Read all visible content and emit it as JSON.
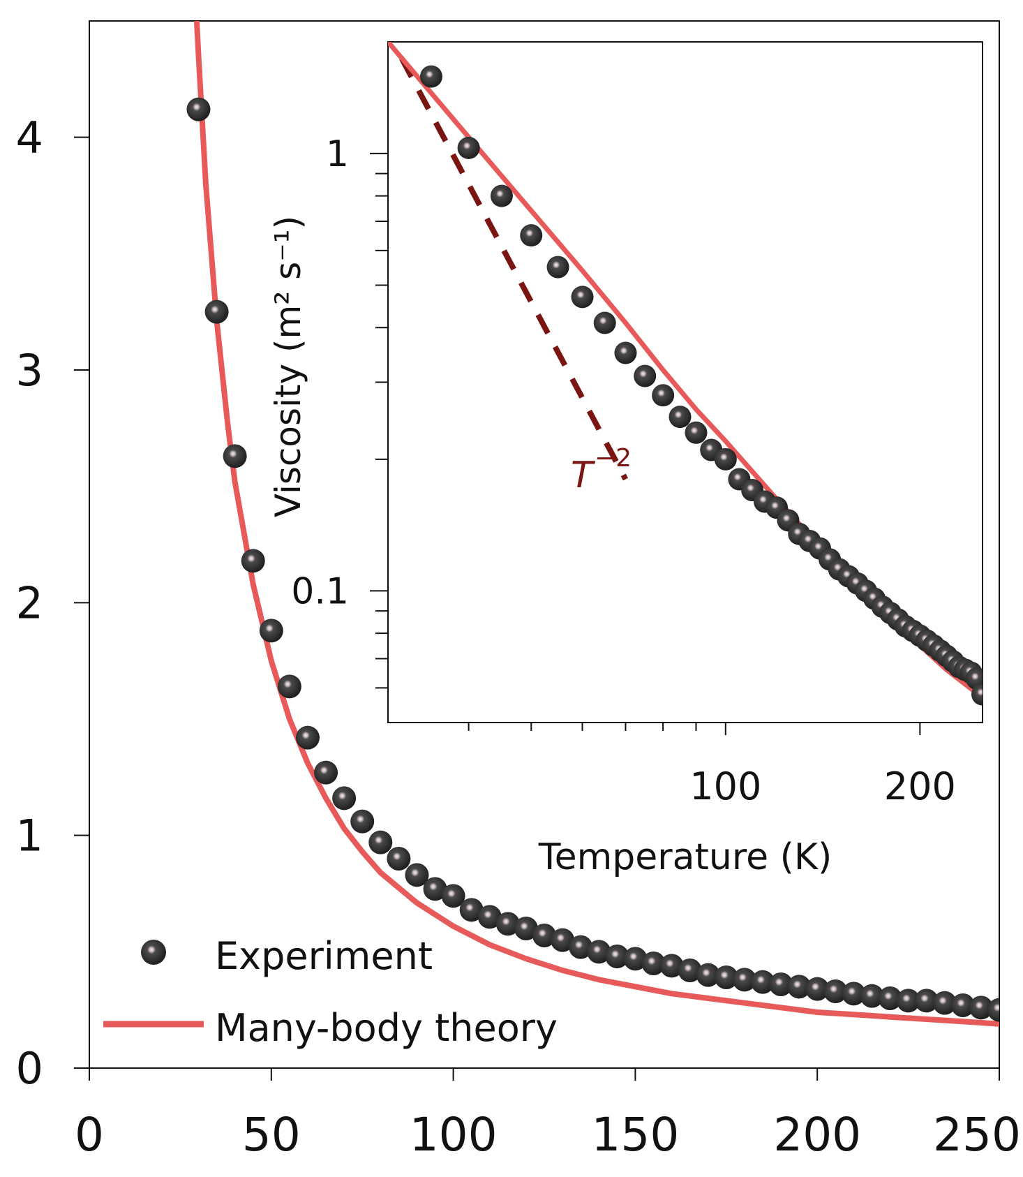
{
  "colors": {
    "theory": "#e85a5a",
    "experiment_fill": "#333333",
    "experiment_highlight": "#d9c7cc",
    "power_law": "#7a1512",
    "axis": "#111111"
  },
  "chart_data": [
    {
      "type": "scatter",
      "role": "main",
      "xlim": [
        0,
        250
      ],
      "ylim": [
        0,
        4.5
      ],
      "xticks": [
        "0",
        "50",
        "100",
        "150",
        "200",
        "250"
      ],
      "yticks": [
        "0",
        "1",
        "2",
        "3",
        "4"
      ],
      "xlabel": "",
      "ylabel": "",
      "grid": false,
      "legend_position": "bottom-left",
      "series": [
        {
          "name": "Experiment",
          "marker": "sphere",
          "x": [
            30,
            35,
            40,
            45,
            50,
            55,
            60,
            65,
            70,
            75,
            80,
            85,
            90,
            95,
            100,
            105,
            110,
            115,
            120,
            125,
            130,
            135,
            140,
            145,
            150,
            155,
            160,
            165,
            170,
            175,
            180,
            185,
            190,
            195,
            200,
            205,
            210,
            215,
            220,
            225,
            230,
            235,
            240,
            245,
            250
          ],
          "y": [
            4.12,
            3.25,
            2.63,
            2.18,
            1.88,
            1.64,
            1.42,
            1.27,
            1.16,
            1.06,
            0.97,
            0.9,
            0.83,
            0.77,
            0.74,
            0.68,
            0.65,
            0.62,
            0.6,
            0.57,
            0.55,
            0.52,
            0.5,
            0.48,
            0.47,
            0.45,
            0.44,
            0.42,
            0.4,
            0.39,
            0.38,
            0.37,
            0.36,
            0.35,
            0.34,
            0.33,
            0.32,
            0.31,
            0.3,
            0.29,
            0.29,
            0.28,
            0.27,
            0.26,
            0.25
          ]
        },
        {
          "name": "Many-body theory",
          "style": "line",
          "x": [
            29.5,
            30,
            32,
            35,
            38,
            40,
            45,
            50,
            55,
            60,
            65,
            70,
            75,
            80,
            90,
            100,
            110,
            120,
            130,
            140,
            150,
            160,
            170,
            180,
            190,
            200,
            210,
            220,
            230,
            240,
            250
          ],
          "y": [
            4.5,
            4.35,
            3.8,
            3.21,
            2.77,
            2.52,
            2.08,
            1.75,
            1.5,
            1.31,
            1.16,
            1.03,
            0.93,
            0.84,
            0.71,
            0.61,
            0.53,
            0.47,
            0.42,
            0.38,
            0.35,
            0.32,
            0.3,
            0.28,
            0.26,
            0.24,
            0.23,
            0.22,
            0.21,
            0.2,
            0.19
          ]
        }
      ]
    },
    {
      "type": "line",
      "role": "inset",
      "xscale": "log",
      "yscale": "log",
      "xlim": [
        30,
        250
      ],
      "ylim": [
        0.05,
        1.8
      ],
      "xticks": [
        "100",
        "200"
      ],
      "yticks": [
        "0.1",
        "1"
      ],
      "xlabel": "Temperature (K)",
      "ylabel": "Viscosity (m² s⁻¹)",
      "annotation": {
        "base": "T",
        "exponent": "−2"
      },
      "series": [
        {
          "name": "Experiment",
          "marker": "sphere",
          "x": [
            35,
            40,
            45,
            50,
            55,
            60,
            65,
            70,
            75,
            80,
            85,
            90,
            95,
            100,
            105,
            110,
            115,
            120,
            125,
            130,
            135,
            140,
            145,
            150,
            155,
            160,
            165,
            170,
            175,
            180,
            185,
            190,
            195,
            200,
            205,
            210,
            215,
            220,
            225,
            230,
            235,
            240,
            245,
            250
          ],
          "y": [
            1.5,
            1.03,
            0.8,
            0.65,
            0.55,
            0.47,
            0.41,
            0.35,
            0.31,
            0.28,
            0.25,
            0.23,
            0.21,
            0.2,
            0.18,
            0.17,
            0.16,
            0.155,
            0.145,
            0.135,
            0.13,
            0.125,
            0.118,
            0.112,
            0.108,
            0.104,
            0.1,
            0.096,
            0.092,
            0.089,
            0.086,
            0.083,
            0.081,
            0.079,
            0.077,
            0.075,
            0.073,
            0.071,
            0.069,
            0.067,
            0.066,
            0.065,
            0.063,
            0.058
          ]
        },
        {
          "name": "Many-body theory",
          "style": "line",
          "x": [
            30,
            40,
            50,
            60,
            70,
            80,
            90,
            100,
            120,
            150,
            180,
            200,
            220,
            250
          ],
          "y": [
            1.8,
            1.09,
            0.74,
            0.54,
            0.41,
            0.32,
            0.26,
            0.22,
            0.162,
            0.113,
            0.087,
            0.075,
            0.066,
            0.057
          ]
        },
        {
          "name": "T^-2",
          "style": "dashed",
          "x": [
            31.5,
            70
          ],
          "y": [
            1.65,
            0.18
          ]
        }
      ]
    }
  ]
}
